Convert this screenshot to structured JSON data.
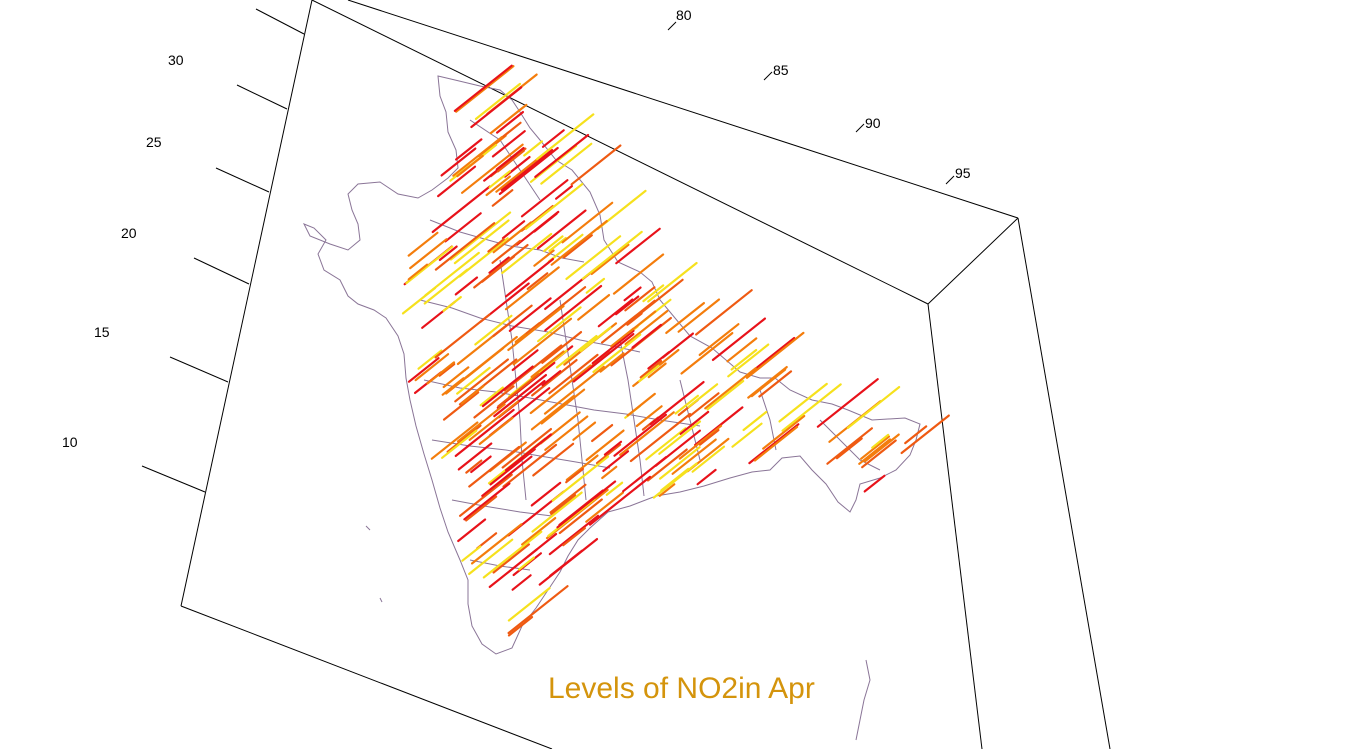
{
  "title": "Levels of NO2in Apr",
  "colors": {
    "frame": "#000000",
    "boundary": "#8a7597",
    "title": "#d4940c",
    "red": "#e8121a",
    "orange": "#f47d0c",
    "dark_orange": "#ef5a12",
    "yellow": "#f6e11d"
  },
  "axes": {
    "longitude_ticks": [
      "80",
      "85",
      "90",
      "95"
    ],
    "latitude_ticks": [
      "30",
      "25",
      "20",
      "15",
      "10"
    ]
  },
  "plot": {
    "type": "3d-line-spikes-over-map",
    "region": "India (administrative boundaries)",
    "color_scale": [
      "yellow",
      "orange",
      "dark_orange",
      "red"
    ]
  }
}
